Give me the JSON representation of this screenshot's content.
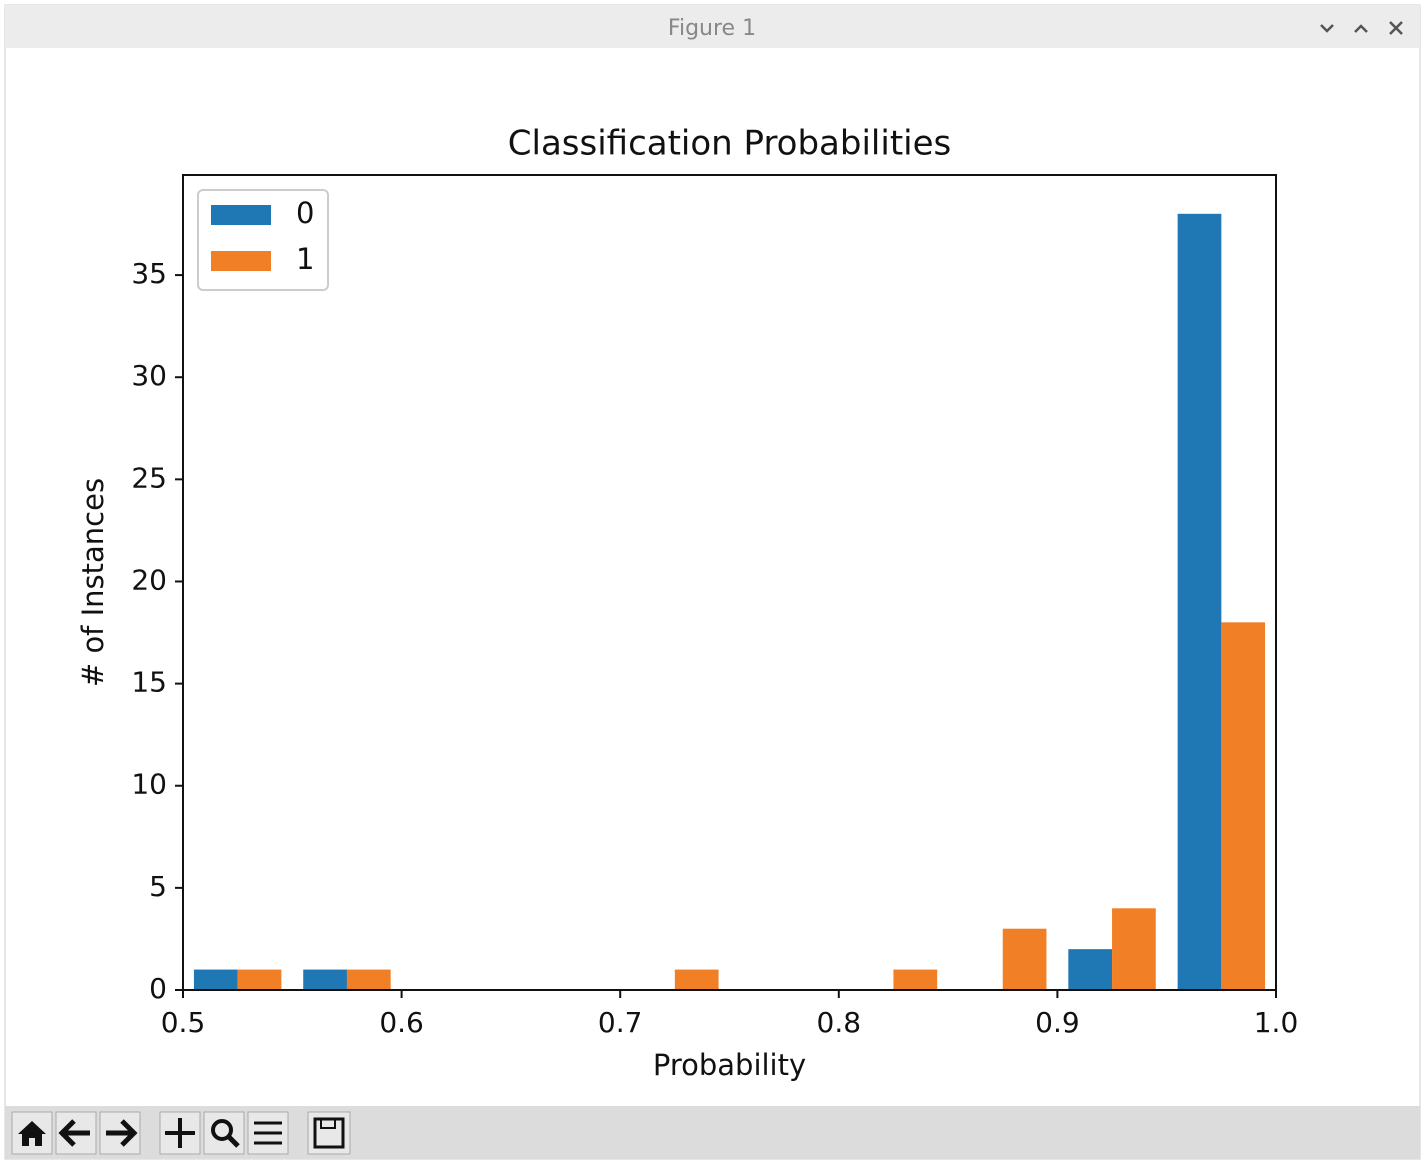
{
  "window": {
    "title": "Figure 1"
  },
  "chart_data": {
    "type": "histogram",
    "title": "Classification Probabilities",
    "x_label": "Probability",
    "y_label": "# of Instances",
    "bins": [
      0.5,
      0.55,
      0.6,
      0.65,
      0.7,
      0.75,
      0.8,
      0.85,
      0.9,
      0.95,
      1.0
    ],
    "series": [
      {
        "name": "0",
        "color": "#1f77b4",
        "values": [
          1,
          1,
          0,
          0,
          0,
          0,
          0,
          0,
          2,
          38
        ]
      },
      {
        "name": "1",
        "color": "#f07f26",
        "values": [
          1,
          1,
          0,
          0,
          1,
          0,
          1,
          3,
          4,
          18
        ]
      }
    ],
    "xlim": [
      0.5,
      1.0
    ],
    "xticks": [
      0.5,
      0.6,
      0.7,
      0.8,
      0.9,
      {
        "value": 1.0,
        "label": "1.0"
      }
    ],
    "ylim": [
      0,
      39.9
    ],
    "yticks": [
      0,
      5,
      10,
      15,
      20,
      25,
      30,
      35
    ],
    "grid": false,
    "legend": "upper left"
  }
}
